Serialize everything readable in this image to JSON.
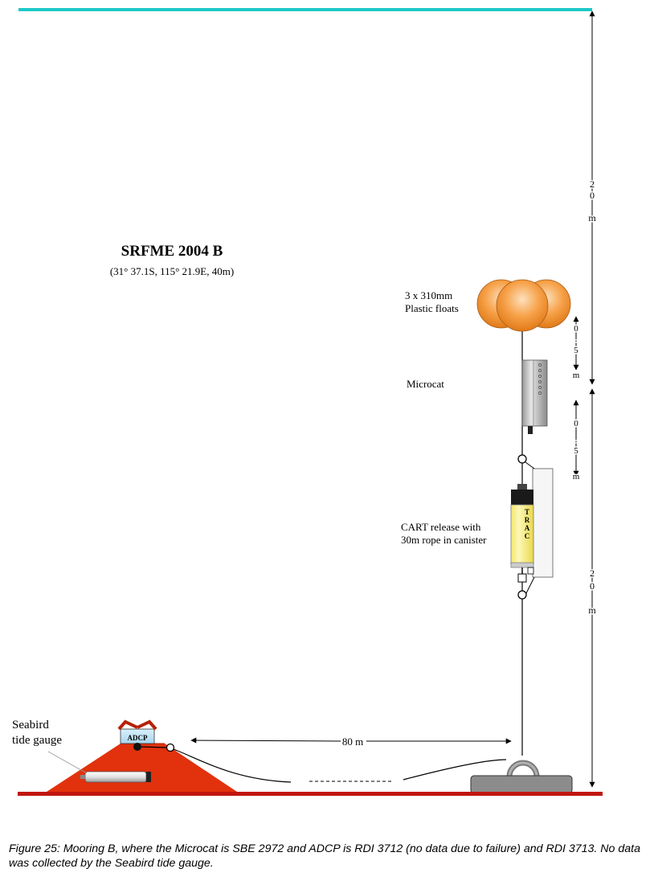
{
  "title": "SRFME 2004 B",
  "position": "(31° 37.1S, 115° 21.9E, 40m)",
  "labels": {
    "floats_line1": "3 x 310mm",
    "floats_line2": "Plastic floats",
    "microcat": "Microcat",
    "release_line1": "CART release with",
    "release_line2": "30m rope in canister",
    "tide_line1": "Seabird",
    "tide_line2": "tide gauge",
    "adcp": "ADCP",
    "distance": "80 m",
    "trac_letters": [
      "T",
      "R",
      "A",
      "C"
    ]
  },
  "dimensions": {
    "upper_span": [
      "2",
      "0",
      "",
      "m"
    ],
    "float_span": [
      "0",
      ".",
      "5",
      "m"
    ],
    "microcat_span": [
      "0",
      ".",
      "5",
      "m"
    ],
    "lower_span": [
      "2",
      "0",
      "",
      "m"
    ]
  },
  "caption": "Figure 25:  Mooring B, where the Microcat is SBE 2972 and ADCP is RDI 3712 (no data due to failure) and RDI 3713. No data was collected by the Seabird tide gauge.",
  "colors": {
    "surface": "#1ec8c8",
    "seabed": "#c0160f",
    "frame": "#e2310d",
    "floats": "#f7a24a",
    "canister": "#fdf59e",
    "adcp": "#bfe3f5",
    "anchor": "#8c8c8c"
  }
}
